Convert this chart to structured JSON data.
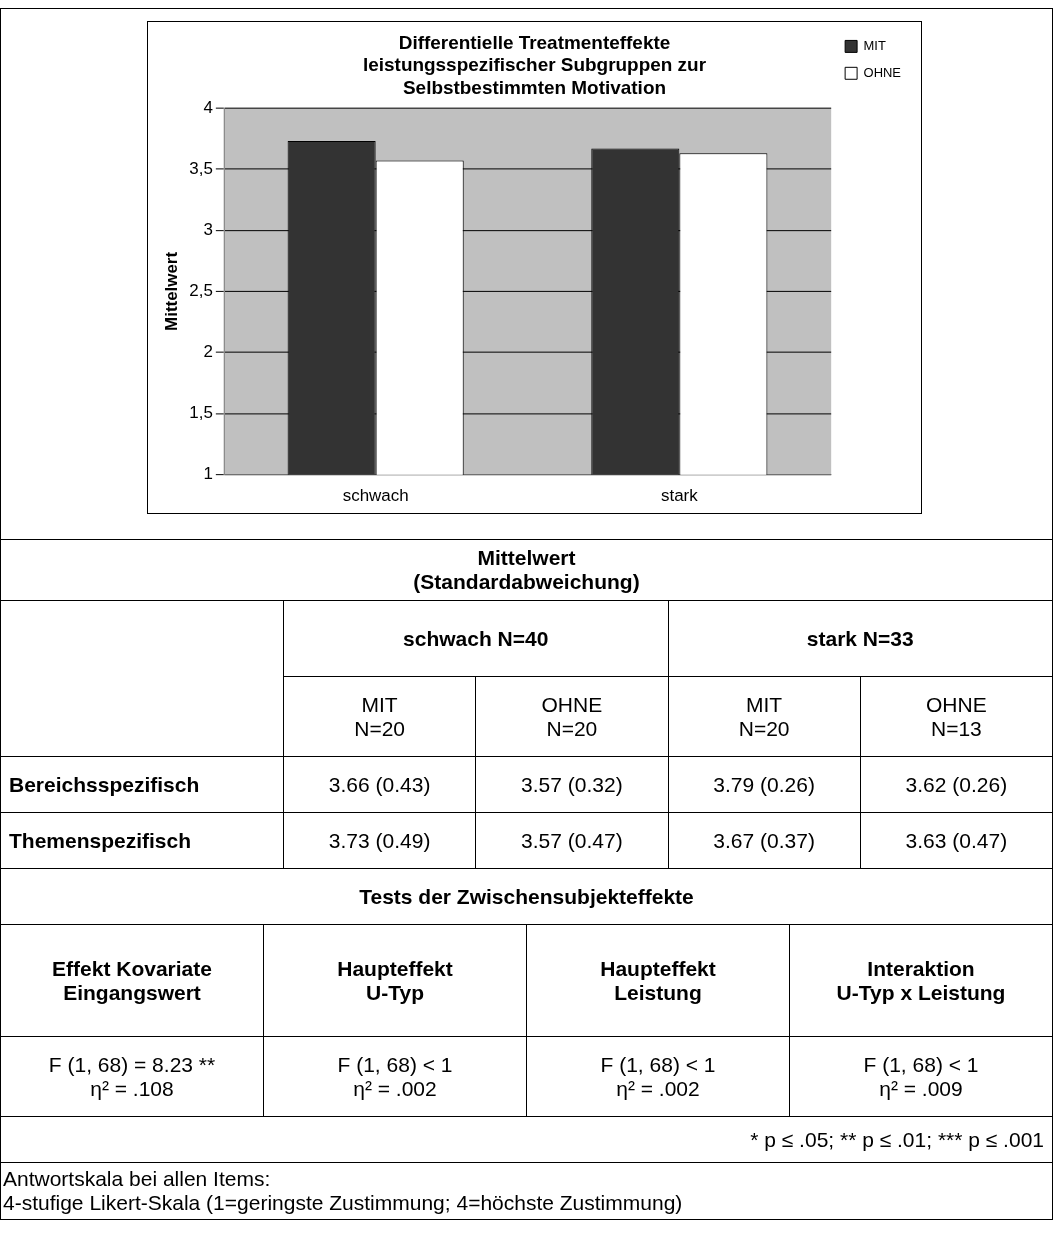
{
  "chart_data": {
    "type": "bar",
    "title": "Differentielle Treatmenteffekte\nleistungsspezifischer Subgruppen zur\nSelbstbestimmten Motivation",
    "ylabel": "Mittelwert",
    "categories": [
      "schwach",
      "stark"
    ],
    "series": [
      {
        "name": "MIT",
        "color": "#333333",
        "values": [
          3.73,
          3.67
        ]
      },
      {
        "name": "OHNE",
        "color": "#ffffff",
        "values": [
          3.57,
          3.63
        ]
      }
    ],
    "ylim": [
      1,
      4
    ],
    "yticks": [
      1,
      {
        "value": 1.5,
        "label": "1,5"
      },
      2,
      {
        "value": 2.5,
        "label": "2,5"
      },
      3,
      {
        "value": 3.5,
        "label": "3,5"
      },
      4
    ],
    "grid": "y",
    "legend": "top right",
    "annotations": [
      "Mittelwert\n(Standardabweichung)",
      "schwach N=40",
      "stark N=33",
      "MIT\nN=20",
      "OHNE\nN=20",
      "MIT\nN=20",
      "OHNE\nN=13",
      "Bereichsspezifisch",
      "3.66 (0.43)",
      "3.57 (0.32)",
      "3.79 (0.26)",
      "3.62 (0.26)",
      "Themenspezifisch",
      "3.73 (0.49)",
      "3.57 (0.47)",
      "3.67 (0.37)",
      "3.63 (0.47)",
      "Tests der Zwischensubjekteffekte",
      "Effekt Kovariate\nEingangswert",
      "Haupteffekt\nU-Typ",
      "Haupteffekt\nLeistung",
      "Interaktion\nU-Typ x Leistung",
      "F (1, 68) = 8.23 **\nη² = .108",
      "F (1, 68) < 1\nη² = .002",
      "F (1, 68) < 1\nη² = .002",
      "F (1, 68) < 1\nη² = .009",
      "* p ≤ .05; ** p ≤ .01; *** p ≤ .001",
      "Antwortskala bei allen Items:\n4-stufige Likert-Skala (1=geringste Zustimmung; 4=höchste Zustimmung)"
    ]
  }
}
